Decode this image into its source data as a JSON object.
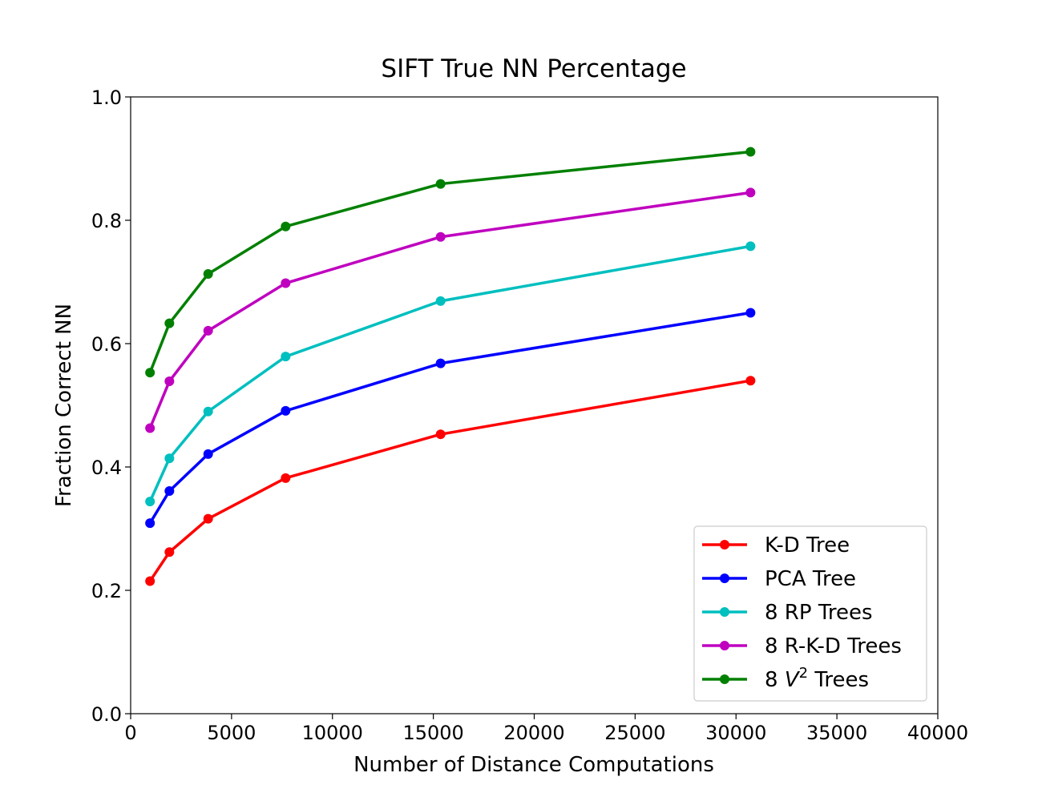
{
  "chart_data": {
    "type": "line",
    "title": "SIFT True NN Percentage",
    "xlabel": "Number of Distance Computations",
    "ylabel": "Fraction Correct NN",
    "xlim": [
      0,
      40000
    ],
    "ylim": [
      0.0,
      1.0
    ],
    "xticks": [
      0,
      5000,
      10000,
      15000,
      20000,
      25000,
      30000,
      35000,
      40000
    ],
    "yticks": [
      0.0,
      0.2,
      0.4,
      0.6,
      0.8,
      1.0
    ],
    "ytick_labels": [
      "0.0",
      "0.2",
      "0.4",
      "0.6",
      "0.8",
      "1.0"
    ],
    "grid": false,
    "legend_position": "lower-right",
    "x": [
      960,
      1920,
      3840,
      7680,
      15360,
      30720
    ],
    "series": [
      {
        "name": "K-D Tree",
        "color": "#ff0000",
        "values": [
          0.215,
          0.262,
          0.316,
          0.382,
          0.453,
          0.54
        ]
      },
      {
        "name": "PCA Tree",
        "color": "#0000ff",
        "values": [
          0.309,
          0.361,
          0.421,
          0.491,
          0.568,
          0.65
        ]
      },
      {
        "name": "8 RP Trees",
        "color": "#00bfbf",
        "values": [
          0.344,
          0.414,
          0.49,
          0.579,
          0.669,
          0.758
        ]
      },
      {
        "name": "8 R-K-D Trees",
        "color": "#bf00bf",
        "values": [
          0.463,
          0.539,
          0.621,
          0.698,
          0.773,
          0.845
        ]
      },
      {
        "name": "8 V² Trees",
        "name_prefix": "8 ",
        "name_var": "V",
        "name_sup": "2",
        "name_suffix": " Trees",
        "color": "#008000",
        "values": [
          0.553,
          0.633,
          0.713,
          0.79,
          0.859,
          0.911
        ]
      }
    ]
  }
}
